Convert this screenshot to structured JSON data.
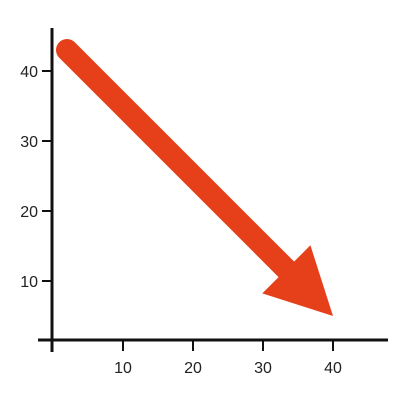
{
  "chart_data": {
    "type": "line",
    "title": "",
    "xlabel": "",
    "ylabel": "",
    "xlim": [
      -1,
      48
    ],
    "ylim": [
      -0.5,
      49.5
    ],
    "x_ticks": [
      10,
      20,
      30,
      40
    ],
    "y_ticks": [
      10,
      20,
      30,
      40
    ],
    "x_tick_labels": [
      "10",
      "20",
      "30",
      "40"
    ],
    "y_tick_labels": [
      "10",
      "20",
      "30",
      "40"
    ],
    "grid": false,
    "legend": "none",
    "series": [
      {
        "style": "arrow",
        "color": "#e6401a",
        "points": [
          {
            "x": 2,
            "y": 43
          },
          {
            "x": 40,
            "y": 5
          }
        ]
      }
    ]
  }
}
